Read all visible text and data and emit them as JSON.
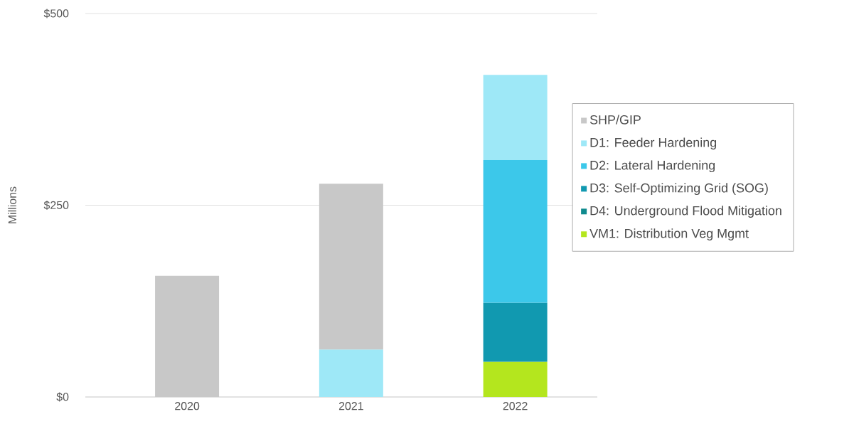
{
  "chart_data": {
    "type": "bar",
    "stacked": true,
    "ylabel": "Millions",
    "categories": [
      "2020",
      "2021",
      "2022"
    ],
    "series": [
      {
        "name": "VM1: Distribution Veg Mgmt",
        "color": "#b4e61e",
        "values": [
          null,
          null,
          46
        ]
      },
      {
        "name": "D4: Underground Flood Mitigation",
        "color": "#0f8a8e",
        "values": [
          null,
          null,
          null
        ]
      },
      {
        "name": "D3: Self-Optimizing Grid (SOG)",
        "color": "#1199b0",
        "values": [
          null,
          null,
          77
        ]
      },
      {
        "name": "D2: Lateral Hardening",
        "color": "#3cc8ea",
        "values": [
          null,
          null,
          186
        ]
      },
      {
        "name": "D1: Feeder Hardening",
        "color": "#9ee8f7",
        "values": [
          null,
          62,
          111
        ]
      },
      {
        "name": "SHP/GIP",
        "color": "#c8c8c8",
        "values": [
          158,
          216,
          null
        ]
      }
    ],
    "ylim": [
      0,
      500
    ],
    "yticks": [
      {
        "value": 0,
        "label": "$0"
      },
      {
        "value": 250,
        "label": "$250"
      },
      {
        "value": 500,
        "label": "$500"
      }
    ],
    "grid": "y",
    "legend": "right"
  }
}
